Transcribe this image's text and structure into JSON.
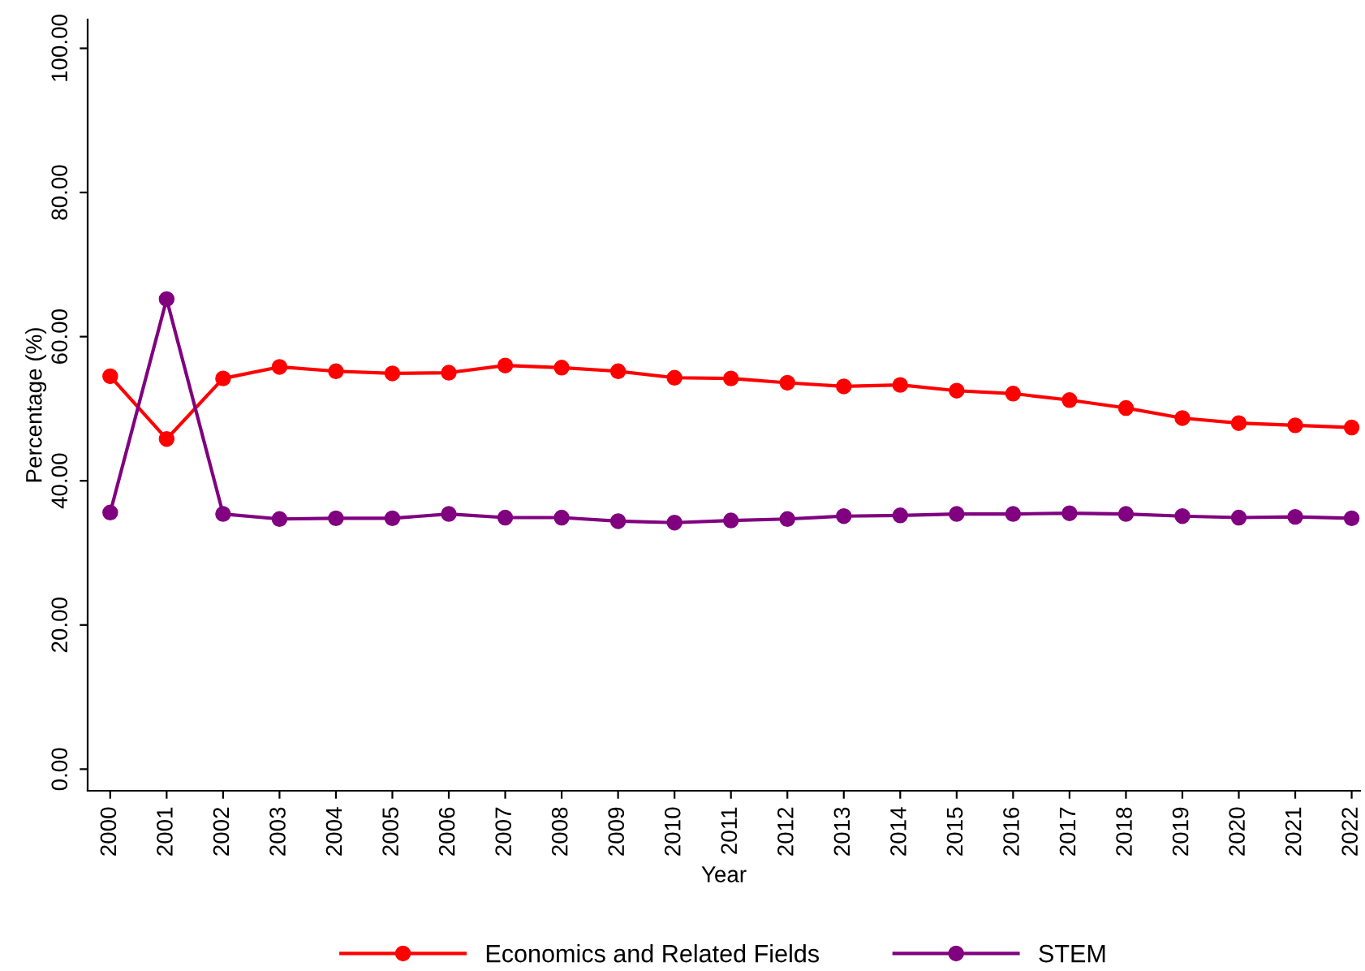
{
  "chart_data": {
    "type": "line",
    "xlabel": "Year",
    "ylabel": "Percentage (%)",
    "categories": [
      "2000",
      "2001",
      "2002",
      "2003",
      "2004",
      "2005",
      "2006",
      "2007",
      "2008",
      "2009",
      "2010",
      "2011",
      "2012",
      "2013",
      "2014",
      "2015",
      "2016",
      "2017",
      "2018",
      "2019",
      "2020",
      "2021",
      "2022"
    ],
    "series": [
      {
        "name": "Economics and Related Fields",
        "color": "#ff0000",
        "values": [
          54.5,
          45.8,
          54.2,
          55.8,
          55.2,
          54.9,
          55.0,
          56.0,
          55.7,
          55.2,
          54.3,
          54.2,
          53.6,
          53.1,
          53.3,
          52.5,
          52.1,
          51.2,
          50.1,
          48.7,
          48.0,
          47.7,
          47.4
        ]
      },
      {
        "name": "STEM",
        "color": "#800080",
        "values": [
          35.6,
          65.2,
          35.4,
          34.7,
          34.8,
          34.8,
          35.4,
          34.9,
          34.9,
          34.4,
          34.2,
          34.5,
          34.7,
          35.1,
          35.2,
          35.4,
          35.4,
          35.5,
          35.4,
          35.1,
          34.9,
          35.0,
          34.8
        ]
      }
    ],
    "ylim": [
      -3,
      104
    ],
    "yticks": [
      {
        "value": 0,
        "label": "0.00"
      },
      {
        "value": 20,
        "label": "20.00"
      },
      {
        "value": 40,
        "label": "40.00"
      },
      {
        "value": 60,
        "label": "60.00"
      },
      {
        "value": 80,
        "label": "80.00"
      },
      {
        "value": 100,
        "label": "100.00"
      }
    ],
    "grid": false,
    "legend": "bottom",
    "marker": "circle",
    "line_style": "solid"
  }
}
